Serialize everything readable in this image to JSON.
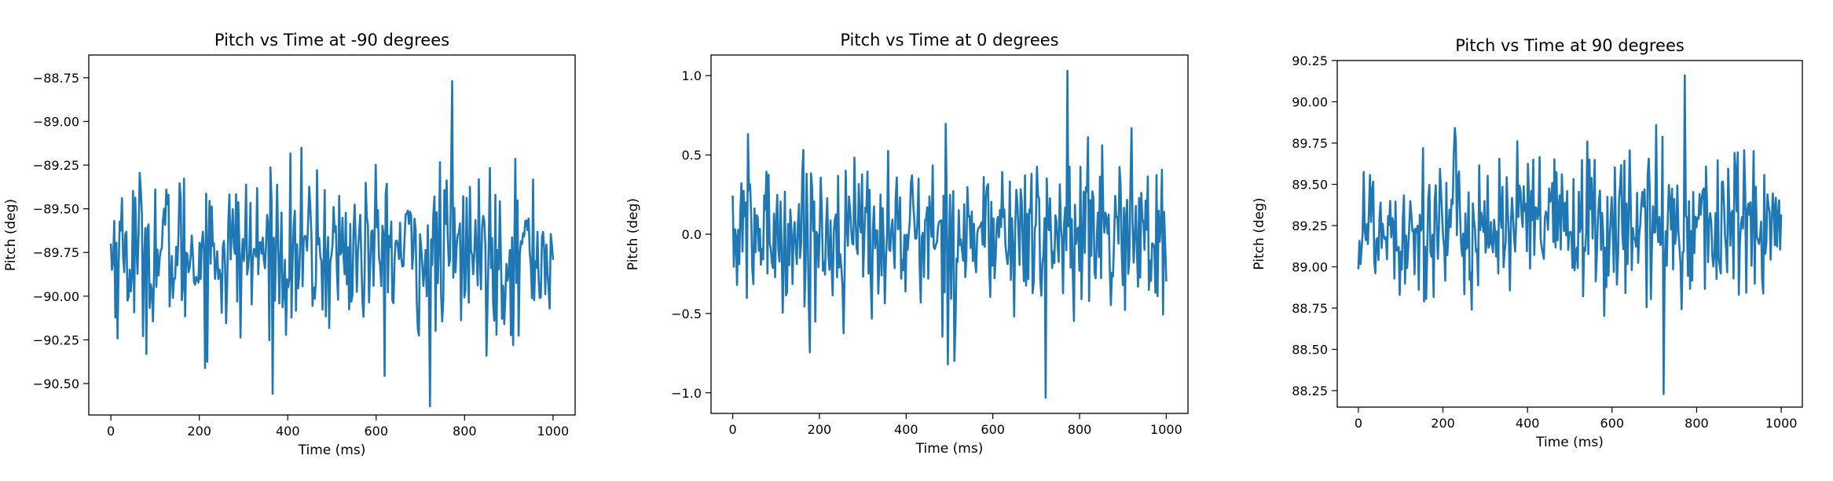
{
  "chart_data": [
    {
      "type": "line",
      "title": "Pitch vs Time at -90 degrees",
      "xlabel": "Time (ms)",
      "ylabel": "Pitch (deg)",
      "xlim": [
        -50,
        1050
      ],
      "ylim": [
        -90.68,
        -88.62
      ],
      "xticks": [
        0,
        200,
        400,
        600,
        800,
        1000
      ],
      "xtick_labels": [
        "0",
        "200",
        "400",
        "600",
        "800",
        "1000"
      ],
      "yticks": [
        -90.5,
        -90.25,
        -90.0,
        -89.75,
        -89.5,
        -89.25,
        -89.0,
        -88.75
      ],
      "ytick_labels": [
        "−90.50",
        "−90.25",
        "−90.00",
        "−89.75",
        "−89.50",
        "−89.25",
        "−89.00",
        "−88.75"
      ],
      "grid": false,
      "series": [
        {
          "color": "#1f77b4",
          "base": -89.75,
          "amp": 0.42,
          "peak": -88.77,
          "trough": -90.63
        }
      ]
    },
    {
      "type": "line",
      "title": "Pitch vs Time at 0 degrees",
      "xlabel": "Time (ms)",
      "ylabel": "Pitch (deg)",
      "xlim": [
        -50,
        1050
      ],
      "ylim": [
        -1.13,
        1.13
      ],
      "xticks": [
        0,
        200,
        400,
        600,
        800,
        1000
      ],
      "xtick_labels": [
        "0",
        "200",
        "400",
        "600",
        "800",
        "1000"
      ],
      "yticks": [
        -1.0,
        -0.5,
        0.0,
        0.5,
        1.0
      ],
      "ytick_labels": [
        "−1.0",
        "−0.5",
        "0.0",
        "0.5",
        "1.0"
      ],
      "grid": false,
      "series": [
        {
          "color": "#1f77b4",
          "base": 0.0,
          "amp": 0.45,
          "peak": 1.03,
          "trough": -1.03
        }
      ]
    },
    {
      "type": "line",
      "title": "Pitch vs Time at 90 degrees",
      "xlabel": "Time (ms)",
      "ylabel": "Pitch (deg)",
      "xlim": [
        -50,
        1050
      ],
      "ylim": [
        88.15,
        90.25
      ],
      "xticks": [
        0,
        200,
        400,
        600,
        800,
        1000
      ],
      "xtick_labels": [
        "0",
        "200",
        "400",
        "600",
        "800",
        "1000"
      ],
      "yticks": [
        88.25,
        88.5,
        88.75,
        89.0,
        89.25,
        89.5,
        89.75,
        90.0,
        90.25
      ],
      "ytick_labels": [
        "88.25",
        "88.50",
        "88.75",
        "89.00",
        "89.25",
        "89.50",
        "89.75",
        "90.00",
        "90.25"
      ],
      "grid": false,
      "series": [
        {
          "color": "#1f77b4",
          "base": 89.25,
          "amp": 0.42,
          "peak": 90.16,
          "trough": 88.23
        }
      ]
    }
  ]
}
